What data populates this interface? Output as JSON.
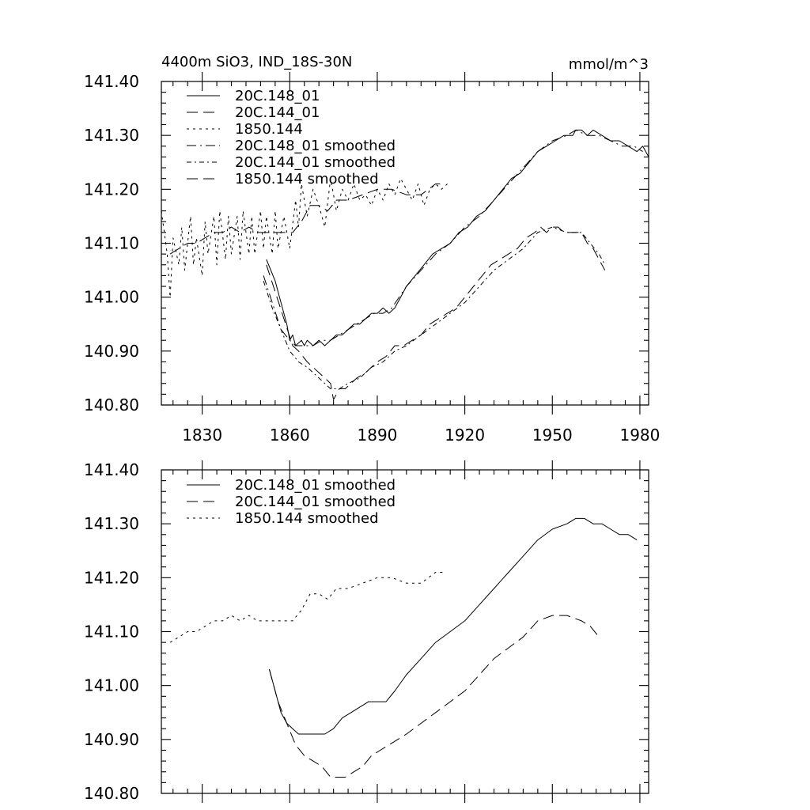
{
  "chart_data": [
    {
      "type": "line",
      "title_left": "4400m SiO3, IND_18S-30N",
      "title_right": "mmol/m^3",
      "xlim": [
        1816,
        1983
      ],
      "ylim": [
        140.8,
        141.4
      ],
      "x_ticks": [
        1830,
        1860,
        1890,
        1920,
        1950,
        1980
      ],
      "x_tick_labels": [
        "1830",
        "1860",
        "1890",
        "1920",
        "1950",
        "1980"
      ],
      "y_ticks": [
        140.8,
        140.9,
        141.0,
        141.1,
        141.2,
        141.3,
        141.4
      ],
      "y_tick_labels": [
        "140.80",
        "140.90",
        "141.00",
        "141.10",
        "141.20",
        "141.30",
        "141.40"
      ],
      "legend": [
        "20C.148_01",
        "20C.144_01",
        "1850.144",
        "20C.148_01 smoothed",
        "20C.144_01 smoothed",
        "1850.144 smoothed"
      ],
      "series": [
        {
          "name": "20C.148_01",
          "dash": "solid",
          "x": [
            1852,
            1855,
            1857,
            1859,
            1860,
            1861,
            1862,
            1864,
            1865,
            1866,
            1868,
            1870,
            1872,
            1874,
            1876,
            1878,
            1880,
            1882,
            1884,
            1886,
            1888,
            1890,
            1892,
            1894,
            1896,
            1898,
            1900,
            1903,
            1906,
            1909,
            1912,
            1915,
            1918,
            1921,
            1924,
            1927,
            1930,
            1933,
            1936,
            1939,
            1942,
            1945,
            1948,
            1951,
            1954,
            1957,
            1958,
            1960,
            1962,
            1964,
            1967,
            1970,
            1973,
            1976,
            1979,
            1981,
            1983
          ],
          "y": [
            141.07,
            141.03,
            140.99,
            140.95,
            140.92,
            140.93,
            140.91,
            140.92,
            140.91,
            140.92,
            140.91,
            140.92,
            140.91,
            140.92,
            140.93,
            140.93,
            140.94,
            140.95,
            140.95,
            140.96,
            140.97,
            140.97,
            140.98,
            140.97,
            140.98,
            141.0,
            141.02,
            141.04,
            141.06,
            141.08,
            141.09,
            141.1,
            141.12,
            141.13,
            141.15,
            141.16,
            141.18,
            141.2,
            141.22,
            141.23,
            141.25,
            141.27,
            141.28,
            141.29,
            141.3,
            141.3,
            141.31,
            141.31,
            141.3,
            141.31,
            141.3,
            141.29,
            141.29,
            141.28,
            141.27,
            141.28,
            141.26
          ]
        },
        {
          "name": "20C.144_01",
          "dash": "14,7",
          "x": [
            1852,
            1855,
            1858,
            1861,
            1863,
            1866,
            1868,
            1870,
            1872,
            1874,
            1875,
            1877,
            1879,
            1881,
            1883,
            1886,
            1888,
            1890,
            1893,
            1896,
            1899,
            1902,
            1905,
            1908,
            1911,
            1914,
            1917,
            1920,
            1923,
            1926,
            1929,
            1932,
            1935,
            1938,
            1941,
            1944,
            1946,
            1948,
            1950,
            1952,
            1954,
            1956,
            1958,
            1960,
            1962,
            1964,
            1966,
            1968
          ],
          "y": [
            141.06,
            141.01,
            140.96,
            140.91,
            140.9,
            140.88,
            140.87,
            140.86,
            140.85,
            140.84,
            140.81,
            140.83,
            140.83,
            140.84,
            140.85,
            140.86,
            140.87,
            140.88,
            140.89,
            140.91,
            140.91,
            140.92,
            140.93,
            140.95,
            140.96,
            140.97,
            140.98,
            141.0,
            141.02,
            141.04,
            141.06,
            141.07,
            141.08,
            141.09,
            141.11,
            141.12,
            141.13,
            141.12,
            141.13,
            141.13,
            141.12,
            141.12,
            141.12,
            141.12,
            141.1,
            141.09,
            141.07,
            141.05
          ]
        },
        {
          "name": "1850.144",
          "dash": "3,5",
          "x": [
            1816,
            1818,
            1819,
            1820,
            1822,
            1823,
            1824,
            1826,
            1827,
            1828,
            1830,
            1831,
            1832,
            1834,
            1835,
            1836,
            1838,
            1839,
            1840,
            1842,
            1843,
            1844,
            1846,
            1847,
            1848,
            1850,
            1851,
            1852,
            1854,
            1855,
            1856,
            1858,
            1860,
            1862,
            1863,
            1864,
            1866,
            1868,
            1870,
            1872,
            1874,
            1876,
            1878,
            1880,
            1882,
            1884,
            1886,
            1888,
            1890,
            1892,
            1894,
            1896,
            1898,
            1900,
            1902,
            1904,
            1906,
            1908,
            1910,
            1912,
            1914
          ],
          "y": [
            141.16,
            141.08,
            141.0,
            141.11,
            141.06,
            141.13,
            141.05,
            141.15,
            141.06,
            141.11,
            141.04,
            141.14,
            141.08,
            141.15,
            141.06,
            141.16,
            141.07,
            141.15,
            141.08,
            141.15,
            141.07,
            141.16,
            141.08,
            141.15,
            141.08,
            141.16,
            141.09,
            141.15,
            141.08,
            141.16,
            141.09,
            141.15,
            141.09,
            141.18,
            141.13,
            141.21,
            141.15,
            141.2,
            141.17,
            141.13,
            141.22,
            141.16,
            141.2,
            141.18,
            141.21,
            141.18,
            141.19,
            141.17,
            141.2,
            141.18,
            141.21,
            141.19,
            141.22,
            141.2,
            141.18,
            141.21,
            141.17,
            141.2,
            141.21,
            141.2,
            141.21
          ]
        },
        {
          "name": "20C.148_01 smoothed",
          "dash": "12,5,2,5",
          "x": [
            1851,
            1854,
            1857,
            1860,
            1862,
            1865,
            1868,
            1871,
            1874,
            1877,
            1880,
            1883,
            1886,
            1889,
            1892,
            1895,
            1900,
            1905,
            1910,
            1915,
            1920,
            1925,
            1930,
            1935,
            1940,
            1945,
            1950,
            1955,
            1958,
            1962,
            1966,
            1970,
            1974,
            1978,
            1981
          ],
          "y": [
            141.04,
            140.99,
            140.94,
            140.92,
            140.91,
            140.91,
            140.91,
            140.92,
            140.92,
            140.93,
            140.94,
            140.95,
            140.96,
            140.97,
            140.97,
            140.98,
            141.02,
            141.05,
            141.08,
            141.1,
            141.13,
            141.15,
            141.18,
            141.21,
            141.24,
            141.27,
            141.29,
            141.3,
            141.31,
            141.3,
            141.3,
            141.29,
            141.28,
            141.28,
            141.27
          ]
        },
        {
          "name": "20C.144_01 smoothed",
          "dash": "6,4,2,4",
          "x": [
            1851,
            1854,
            1857,
            1860,
            1863,
            1866,
            1870,
            1874,
            1877,
            1880,
            1884,
            1888,
            1892,
            1896,
            1900,
            1905,
            1910,
            1915,
            1920,
            1925,
            1930,
            1935,
            1940,
            1945,
            1950,
            1955,
            1960,
            1963,
            1966,
            1968
          ],
          "y": [
            141.03,
            140.98,
            140.94,
            140.9,
            140.88,
            140.87,
            140.85,
            140.83,
            140.83,
            140.84,
            140.85,
            140.87,
            140.88,
            140.9,
            140.91,
            140.93,
            140.95,
            140.97,
            140.99,
            141.02,
            141.05,
            141.07,
            141.09,
            141.12,
            141.13,
            141.12,
            141.12,
            141.1,
            141.08,
            141.06
          ]
        },
        {
          "name": "1850.144 smoothed",
          "dash": "14,7",
          "x": [
            1819,
            1822,
            1825,
            1828,
            1831,
            1834,
            1837,
            1840,
            1843,
            1846,
            1849,
            1852,
            1855,
            1858,
            1861,
            1864,
            1867,
            1870,
            1873,
            1876,
            1880,
            1885,
            1890,
            1895,
            1900,
            1905,
            1910,
            1913
          ],
          "y": [
            141.08,
            141.09,
            141.1,
            141.1,
            141.11,
            141.12,
            141.12,
            141.13,
            141.12,
            141.13,
            141.12,
            141.12,
            141.12,
            141.12,
            141.12,
            141.14,
            141.17,
            141.17,
            141.16,
            141.18,
            141.18,
            141.19,
            141.2,
            141.2,
            141.19,
            141.19,
            141.21,
            141.21
          ]
        }
      ]
    },
    {
      "type": "line",
      "xlim": [
        1816,
        1983
      ],
      "ylim": [
        140.8,
        141.4
      ],
      "x_ticks": [
        1830,
        1860,
        1890,
        1920,
        1950,
        1980
      ],
      "y_ticks": [
        140.8,
        140.9,
        141.0,
        141.1,
        141.2,
        141.3,
        141.4
      ],
      "y_tick_labels": [
        "140.80",
        "140.90",
        "141.00",
        "141.10",
        "141.20",
        "141.30",
        "141.40"
      ],
      "legend": [
        "20C.148_01 smoothed",
        "20C.144_01 smoothed",
        "1850.144 smoothed"
      ],
      "series": [
        {
          "name": "20C.148_01 smoothed",
          "dash": "solid",
          "x": [
            1853,
            1855,
            1857,
            1859,
            1861,
            1863,
            1866,
            1869,
            1872,
            1875,
            1878,
            1881,
            1884,
            1887,
            1890,
            1893,
            1896,
            1900,
            1905,
            1910,
            1915,
            1920,
            1925,
            1930,
            1935,
            1940,
            1945,
            1950,
            1955,
            1958,
            1961,
            1964,
            1967,
            1970,
            1973,
            1976,
            1979
          ],
          "y": [
            141.03,
            140.99,
            140.95,
            140.93,
            140.92,
            140.91,
            140.91,
            140.91,
            140.91,
            140.92,
            140.94,
            140.95,
            140.96,
            140.97,
            140.97,
            140.97,
            140.99,
            141.02,
            141.05,
            141.08,
            141.1,
            141.12,
            141.15,
            141.18,
            141.21,
            141.24,
            141.27,
            141.29,
            141.3,
            141.31,
            141.31,
            141.3,
            141.3,
            141.29,
            141.28,
            141.28,
            141.27
          ]
        },
        {
          "name": "20C.144_01 smoothed",
          "dash": "14,7",
          "x": [
            1853,
            1856,
            1859,
            1862,
            1865,
            1868,
            1871,
            1874,
            1876,
            1879,
            1882,
            1885,
            1888,
            1891,
            1894,
            1897,
            1900,
            1905,
            1910,
            1915,
            1920,
            1925,
            1930,
            1935,
            1940,
            1945,
            1950,
            1955,
            1960,
            1963,
            1966
          ],
          "y": [
            141.03,
            140.97,
            140.93,
            140.89,
            140.87,
            140.86,
            140.85,
            140.83,
            140.83,
            140.83,
            140.84,
            140.85,
            140.87,
            140.88,
            140.89,
            140.9,
            140.91,
            140.93,
            140.95,
            140.97,
            140.99,
            141.02,
            141.05,
            141.07,
            141.09,
            141.12,
            141.13,
            141.13,
            141.12,
            141.11,
            141.09
          ]
        },
        {
          "name": "1850.144 smoothed",
          "dash": "3,5",
          "x": [
            1819,
            1822,
            1825,
            1828,
            1831,
            1834,
            1837,
            1840,
            1843,
            1846,
            1849,
            1852,
            1855,
            1858,
            1861,
            1864,
            1867,
            1870,
            1873,
            1876,
            1880,
            1885,
            1890,
            1895,
            1900,
            1905,
            1910,
            1913
          ],
          "y": [
            141.08,
            141.09,
            141.1,
            141.1,
            141.11,
            141.12,
            141.12,
            141.13,
            141.12,
            141.13,
            141.12,
            141.12,
            141.12,
            141.12,
            141.12,
            141.14,
            141.17,
            141.17,
            141.16,
            141.18,
            141.18,
            141.19,
            141.2,
            141.2,
            141.19,
            141.19,
            141.21,
            141.21
          ]
        }
      ]
    }
  ]
}
